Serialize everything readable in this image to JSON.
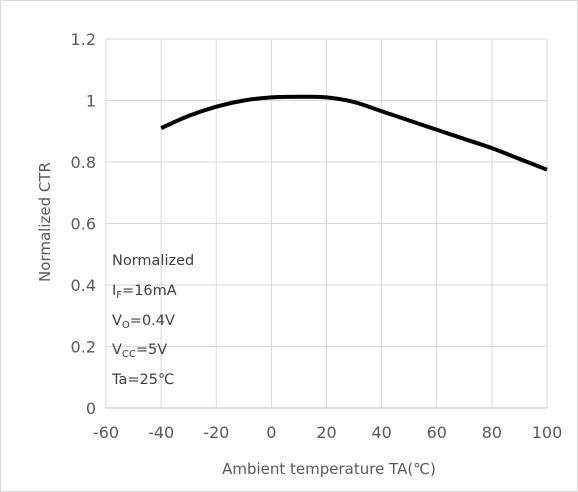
{
  "chart_data": {
    "type": "line",
    "xlabel": "Ambient temperature TA(℃)",
    "ylabel": "Normalized CTR",
    "xlim": [
      -60,
      100
    ],
    "ylim": [
      0,
      1.2
    ],
    "x_ticks": [
      "-60",
      "-40",
      "-20",
      "0",
      "20",
      "40",
      "60",
      "80",
      "100"
    ],
    "y_ticks": [
      "0",
      "0.2",
      "0.4",
      "0.6",
      "0.8",
      "1",
      "1.2"
    ],
    "grid": "horizontal and vertical",
    "series": [
      {
        "x": [
          -40,
          -30,
          -20,
          -10,
          0,
          10,
          20,
          30,
          40,
          50,
          60,
          70,
          80,
          90,
          100
        ],
        "y": [
          0.91,
          0.95,
          0.98,
          1.0,
          1.01,
          1.012,
          1.01,
          0.995,
          0.965,
          0.935,
          0.905,
          0.875,
          0.845,
          0.81,
          0.775
        ],
        "color": "#000000"
      }
    ],
    "annotations": {
      "line1": "Normalized",
      "line2_main": "I",
      "line2_sub": "F",
      "line2_rest": "=16mA",
      "line3_main": "V",
      "line3_sub": "O",
      "line3_rest": "=0.4V",
      "line4_main": "V",
      "line4_sub": "CC",
      "line4_rest": "=5V",
      "line5": "Ta=25℃"
    },
    "colors": {
      "grid": "#d9d9d9",
      "line": "#000000",
      "text": "#595959"
    }
  }
}
